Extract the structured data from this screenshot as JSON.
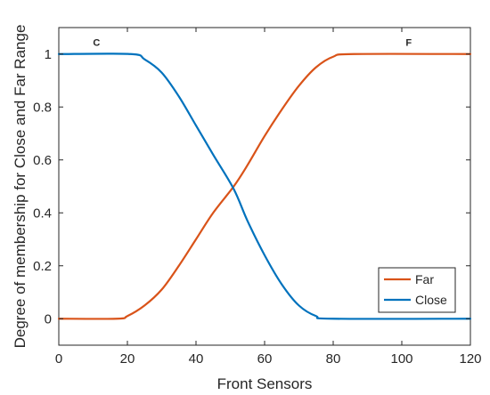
{
  "chart_data": {
    "type": "line",
    "xlabel": "Front Sensors",
    "ylabel": "Degree of membership for Close and Far Range",
    "xlim": [
      0,
      120
    ],
    "ylim": [
      -0.1,
      1.1
    ],
    "xticks": [
      0,
      20,
      40,
      60,
      80,
      100,
      120
    ],
    "yticks": [
      0,
      0.2,
      0.4,
      0.6,
      0.8,
      1
    ],
    "ytick_labels": [
      "0",
      "0.2",
      "0.4",
      "0.6",
      "0.8",
      "1"
    ],
    "grid": false,
    "legend_position": "bottom-right",
    "annotations": [
      {
        "text": "C",
        "x": 11,
        "y": 1.045
      },
      {
        "text": "F",
        "x": 102,
        "y": 1.045
      }
    ],
    "series": [
      {
        "name": "Far",
        "color": "#d95319",
        "x": [
          0,
          17,
          20,
          25,
          30,
          35,
          40,
          45,
          51,
          55,
          60,
          65,
          70,
          75,
          80,
          86,
          120
        ],
        "y": [
          0,
          0,
          0.01,
          0.05,
          0.11,
          0.2,
          0.3,
          0.4,
          0.5,
          0.58,
          0.69,
          0.79,
          0.88,
          0.95,
          0.99,
          1,
          1
        ]
      },
      {
        "name": "Close",
        "color": "#0072bd",
        "x": [
          0,
          21,
          25,
          30,
          35,
          40,
          45,
          51,
          55,
          60,
          65,
          70,
          75,
          80,
          120
        ],
        "y": [
          1,
          1,
          0.98,
          0.93,
          0.84,
          0.73,
          0.62,
          0.49,
          0.37,
          0.24,
          0.13,
          0.05,
          0.01,
          0,
          0
        ]
      }
    ]
  }
}
